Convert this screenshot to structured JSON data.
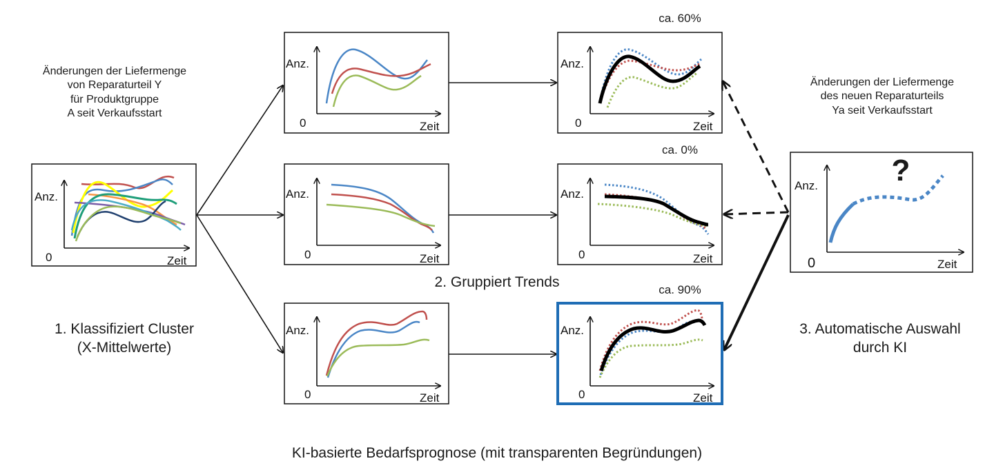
{
  "source": {
    "description": "Änderungen der Liefermenge\nvon Reparaturteil Y\nfür Produktgruppe\nA seit Verkaufsstart",
    "step_label": "1. Klassifiziert Cluster\n(X-Mittelwerte)"
  },
  "groups": {
    "step_label": "2. Gruppiert Trends"
  },
  "new_part": {
    "description": "Änderungen der Liefermenge\ndes neuen Reparaturteils\nYa seit Verkaufsstart",
    "step_label": "3. Automatische Auswahl\ndurch KI",
    "unknown_mark": "?"
  },
  "matches": [
    {
      "percent": "ca. 60%",
      "selected": false
    },
    {
      "percent": "ca. 0%",
      "selected": false
    },
    {
      "percent": "ca. 90%",
      "selected": true
    }
  ],
  "axes": {
    "y_label": "Anz.",
    "x_label": "Zeit",
    "origin_label": "0"
  },
  "caption": "KI-basierte Bedarfsprognose (mit transparenten Begründungen)",
  "colors": {
    "blue": "#4a86c6",
    "red": "#c0504d",
    "green": "#9bbb59",
    "yellow": "#ffff00",
    "teal": "#1f9e7a",
    "orange": "#f79646",
    "purple": "#7a5ea8",
    "navy": "#1f3f6e",
    "cyan": "#4bacc6",
    "selected_border": "#1f6db5"
  }
}
